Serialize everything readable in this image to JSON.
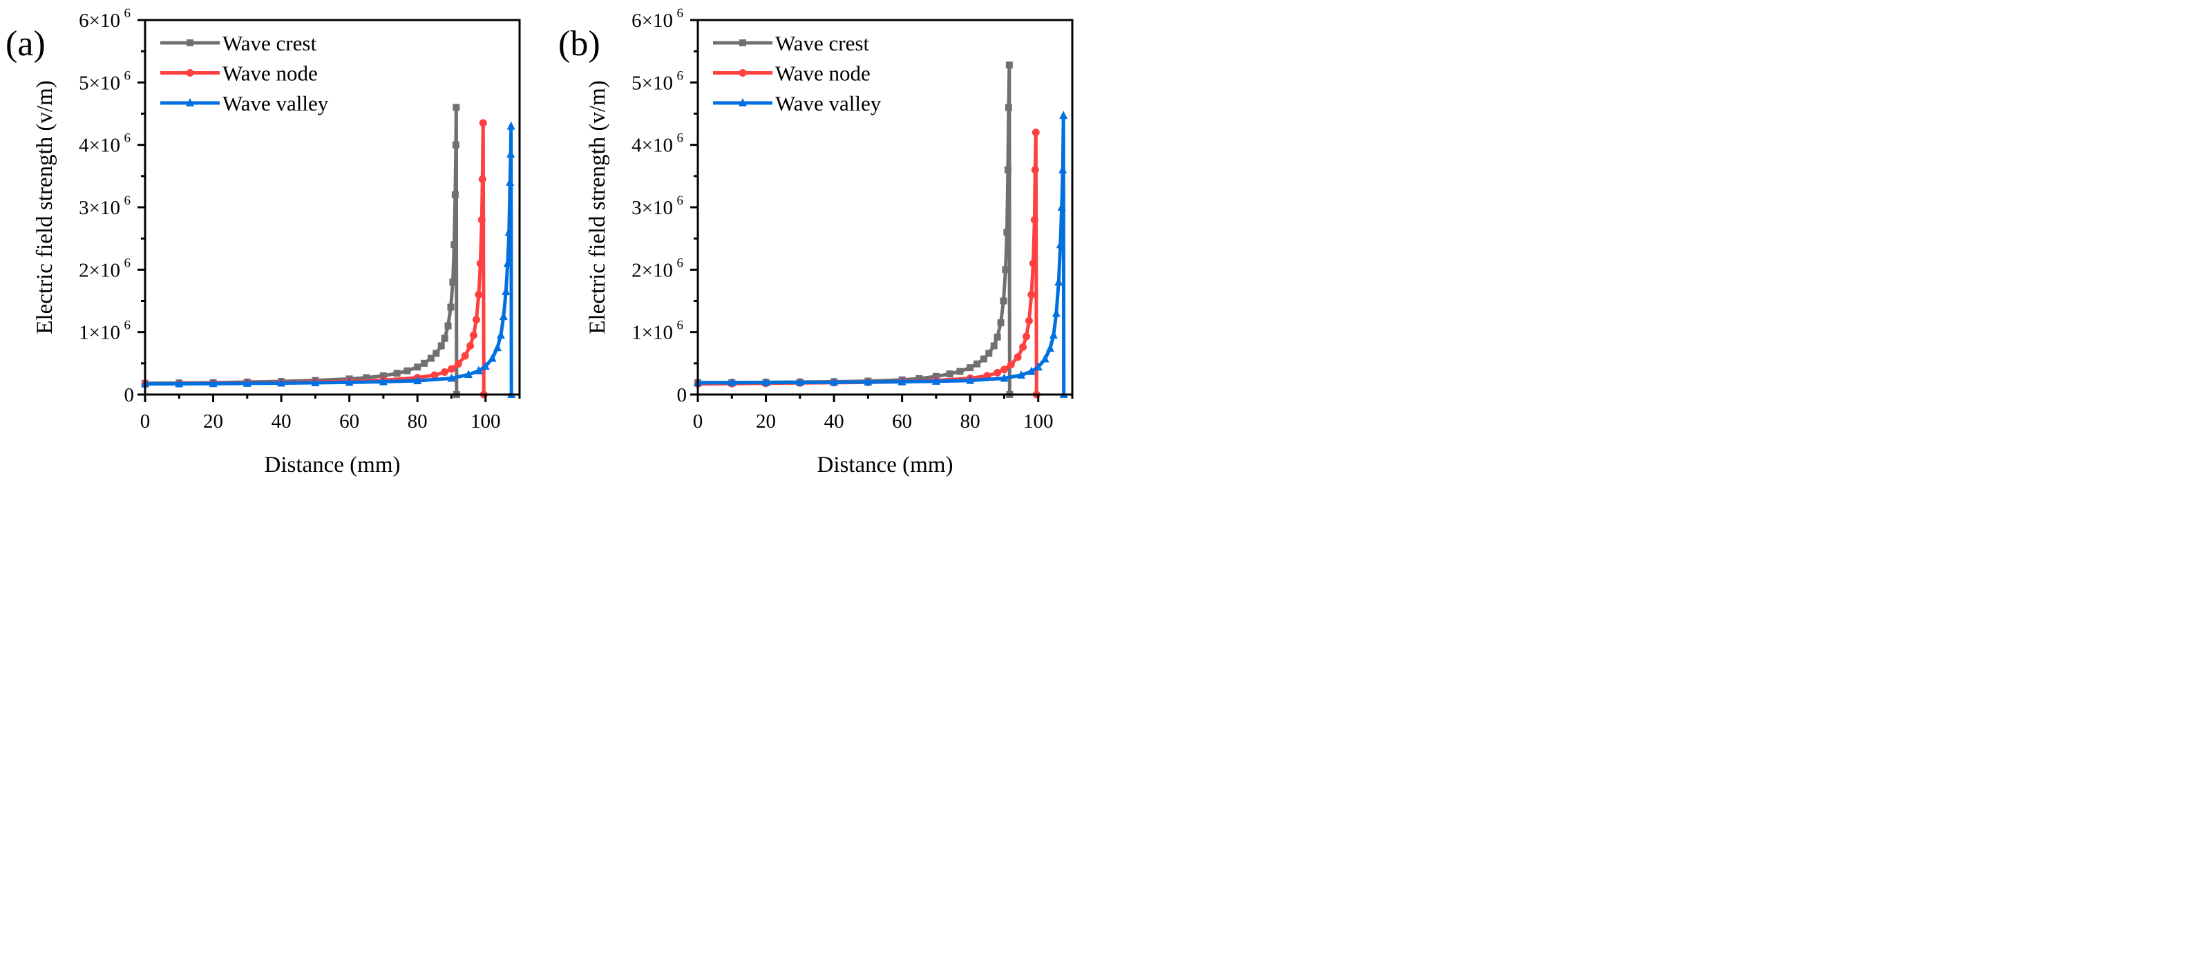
{
  "chart_data": [
    {
      "type": "line",
      "panel_label": "(a)",
      "xlabel": "Distance (mm)",
      "ylabel": "Electric field strength (v/m)",
      "xlim": [
        0,
        110
      ],
      "ylim": [
        0,
        6000000
      ],
      "xticks": [
        "0",
        "20",
        "40",
        "60",
        "80",
        "100"
      ],
      "yticks": [
        "0",
        "1×10",
        "2×10",
        "3×10",
        "4×10",
        "5×10",
        "6×10"
      ],
      "ytick_exp": "6",
      "legend_position": "top-left",
      "series": [
        {
          "name": "Wave crest",
          "color": "#707070",
          "marker": "square",
          "x": [
            0,
            10,
            20,
            30,
            40,
            50,
            60,
            65,
            70,
            74,
            77,
            80,
            82,
            84,
            85.5,
            87,
            88,
            89,
            89.8,
            90.4,
            90.8,
            91.1,
            91.3,
            91.4,
            91.5
          ],
          "y": [
            180000,
            185000,
            190000,
            200000,
            210000,
            225000,
            250000,
            270000,
            300000,
            340000,
            380000,
            440000,
            500000,
            580000,
            660000,
            780000,
            900000,
            1100000,
            1400000,
            1800000,
            2400000,
            3200000,
            4000000,
            4600000,
            0
          ]
        },
        {
          "name": "Wave node",
          "color": "#ff4040",
          "marker": "circle",
          "x": [
            0,
            10,
            20,
            30,
            40,
            50,
            60,
            70,
            80,
            85,
            88,
            90,
            92,
            94,
            95.5,
            96.5,
            97.3,
            98,
            98.5,
            98.9,
            99.1,
            99.3,
            99.5
          ],
          "y": [
            170000,
            175000,
            180000,
            185000,
            190000,
            200000,
            210000,
            230000,
            270000,
            310000,
            360000,
            410000,
            490000,
            620000,
            780000,
            950000,
            1200000,
            1600000,
            2100000,
            2800000,
            3450000,
            4350000,
            0
          ]
        },
        {
          "name": "Wave valley",
          "color": "#0070e0",
          "marker": "triangle",
          "x": [
            0,
            10,
            20,
            30,
            40,
            50,
            60,
            70,
            80,
            90,
            95,
            98,
            100,
            102,
            103.5,
            104.5,
            105.3,
            106,
            106.5,
            106.9,
            107.2,
            107.4,
            107.5,
            107.6
          ],
          "y": [
            170000,
            172000,
            175000,
            178000,
            182000,
            188000,
            195000,
            205000,
            220000,
            260000,
            320000,
            380000,
            450000,
            580000,
            750000,
            950000,
            1250000,
            1650000,
            2100000,
            2600000,
            3400000,
            3850000,
            4300000,
            0
          ]
        }
      ]
    },
    {
      "type": "line",
      "panel_label": "(b)",
      "xlabel": "Distance (mm)",
      "ylabel": "Electric field strength (v/m)",
      "xlim": [
        0,
        110
      ],
      "ylim": [
        0,
        6000000
      ],
      "xticks": [
        "0",
        "20",
        "40",
        "60",
        "80",
        "100"
      ],
      "yticks": [
        "0",
        "1×10",
        "2×10",
        "3×10",
        "4×10",
        "5×10",
        "6×10"
      ],
      "ytick_exp": "6",
      "legend_position": "top-left",
      "series": [
        {
          "name": "Wave crest",
          "color": "#707070",
          "marker": "square",
          "x": [
            0,
            10,
            20,
            30,
            40,
            50,
            60,
            65,
            70,
            74,
            77,
            80,
            82,
            84,
            85.5,
            87,
            88,
            89,
            89.8,
            90.4,
            90.8,
            91.1,
            91.3,
            91.5,
            91.6
          ],
          "y": [
            190000,
            192000,
            195000,
            200000,
            205000,
            215000,
            235000,
            255000,
            290000,
            330000,
            370000,
            430000,
            490000,
            570000,
            660000,
            780000,
            920000,
            1150000,
            1500000,
            2000000,
            2600000,
            3600000,
            4600000,
            5280000,
            0
          ]
        },
        {
          "name": "Wave node",
          "color": "#ff4040",
          "marker": "circle",
          "x": [
            0,
            10,
            20,
            30,
            40,
            50,
            60,
            70,
            80,
            85,
            88,
            90,
            92,
            94,
            95.5,
            96.5,
            97.3,
            98,
            98.5,
            98.9,
            99.1,
            99.3,
            99.5
          ],
          "y": [
            170000,
            175000,
            180000,
            185000,
            190000,
            195000,
            205000,
            225000,
            260000,
            300000,
            350000,
            400000,
            480000,
            600000,
            760000,
            930000,
            1180000,
            1600000,
            2100000,
            2800000,
            3600000,
            4200000,
            0
          ]
        },
        {
          "name": "Wave valley",
          "color": "#0070e0",
          "marker": "triangle",
          "x": [
            0,
            10,
            20,
            30,
            40,
            50,
            60,
            70,
            80,
            90,
            95,
            98,
            100,
            102,
            103.5,
            104.5,
            105.3,
            106,
            106.5,
            106.9,
            107.2,
            107.4,
            107.5
          ],
          "y": [
            190000,
            190000,
            192000,
            194000,
            196000,
            200000,
            205000,
            212000,
            225000,
            260000,
            310000,
            370000,
            440000,
            570000,
            740000,
            950000,
            1300000,
            1800000,
            2400000,
            3000000,
            3600000,
            4470000,
            0
          ]
        }
      ]
    }
  ]
}
